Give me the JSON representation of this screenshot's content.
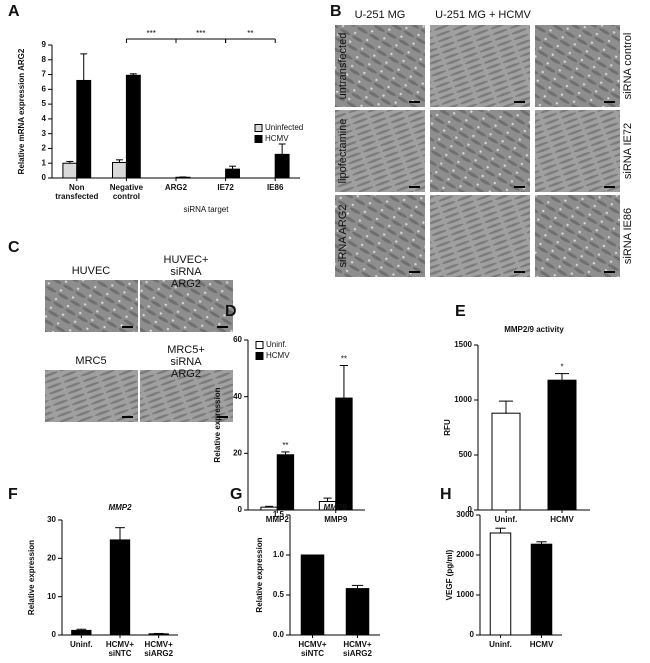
{
  "chart_data": [
    {
      "type": "bar",
      "panel_label": "A",
      "y_label": "Relative mRNA expression ARG2",
      "x_label": "siRNA target",
      "categories": [
        "Non transfected",
        "Negative control",
        "ARG2",
        "IE72",
        "IE86"
      ],
      "series": [
        {
          "name": "Uninfected",
          "color": "#d9d9d9",
          "values": [
            1.0,
            1.05,
            null,
            null,
            null
          ],
          "errors": [
            0.12,
            0.18,
            null,
            null,
            null
          ]
        },
        {
          "name": "HCMV",
          "color": "#000000",
          "values": [
            6.6,
            6.95,
            0.05,
            0.6,
            1.6
          ],
          "errors": [
            1.8,
            0.1,
            0.02,
            0.2,
            0.7
          ]
        }
      ],
      "ylim": [
        0,
        9
      ],
      "yticks": [
        0,
        1,
        2,
        3,
        4,
        5,
        6,
        7,
        8,
        9
      ],
      "annotations": [
        "***",
        "***",
        "**"
      ]
    },
    {
      "type": "bar",
      "panel_label": "D",
      "y_label": "Relative expression",
      "categories": [
        "MMP2",
        "MMP9"
      ],
      "series": [
        {
          "name": "Uninf.",
          "color": "#ffffff",
          "values": [
            1,
            3
          ],
          "errors": [
            0.3,
            1.2
          ]
        },
        {
          "name": "HCMV",
          "color": "#000000",
          "values": [
            19.5,
            39.5
          ],
          "errors": [
            1.0,
            11.5
          ]
        }
      ],
      "ylim": [
        0,
        60
      ],
      "yticks": [
        0,
        20,
        40,
        60
      ],
      "annotations": [
        "**",
        "**"
      ]
    },
    {
      "type": "bar",
      "panel_label": "E",
      "title": "MMP2/9 activity",
      "y_label": "RFU",
      "categories": [
        "Uninf.",
        "HCMV"
      ],
      "values": [
        880,
        1180
      ],
      "errors": [
        110,
        60
      ],
      "colors": [
        "#ffffff",
        "#000000"
      ],
      "ylim": [
        0,
        1500
      ],
      "yticks": [
        0,
        500,
        1000,
        1500
      ],
      "annotations": [
        "*"
      ]
    },
    {
      "type": "bar",
      "panel_label": "F",
      "title": "MMP2",
      "y_label": "Relative expression",
      "categories": [
        "Uninf.",
        "HCMV+ siNTC",
        "HCMV+ siARG2"
      ],
      "values": [
        1.2,
        24.8,
        0.3
      ],
      "errors": [
        0.3,
        3.2,
        0.1
      ],
      "color": "#000000",
      "ylim": [
        0,
        30
      ],
      "yticks": [
        0,
        10,
        20,
        30
      ]
    },
    {
      "type": "bar",
      "panel_label": "G",
      "title": "MMP9",
      "y_label": "Relative expression",
      "categories": [
        "HCMV+ siNTC",
        "HCMV+ siARG2"
      ],
      "values": [
        1.0,
        0.58
      ],
      "errors": [
        0,
        0.04
      ],
      "color": "#000000",
      "ylim": [
        0,
        1.5
      ],
      "yticks": [
        {
          "value": 0,
          "label": "0.0"
        },
        0.5,
        {
          "value": 1,
          "label": "1.0"
        },
        1.5
      ]
    },
    {
      "type": "bar",
      "panel_label": "H",
      "y_label": "VEGF (pg/ml)",
      "categories": [
        "Uninf.",
        "HCMV"
      ],
      "values": [
        2550,
        2270
      ],
      "errors": [
        120,
        60
      ],
      "colors": [
        "#ffffff",
        "#000000"
      ],
      "ylim": [
        0,
        3000
      ],
      "yticks": [
        0,
        1000,
        2000,
        3000
      ]
    }
  ],
  "image_panels": [
    {
      "panel_label": "B",
      "column_titles": [
        "U-251 MG",
        "U-251 MG + HCMV"
      ],
      "row_labels": [
        "untransfected",
        "lipofectamine",
        "siRNA  ARG2"
      ],
      "right_labels": [
        "siRNA  control",
        "siRNA  IE72",
        "siRNA  IE86"
      ]
    },
    {
      "panel_label": "C",
      "titles": [
        "HUVEC",
        "HUVEC+ siRNA ARG2",
        "MRC5",
        "MRC5+ siRNA ARG2"
      ]
    }
  ]
}
